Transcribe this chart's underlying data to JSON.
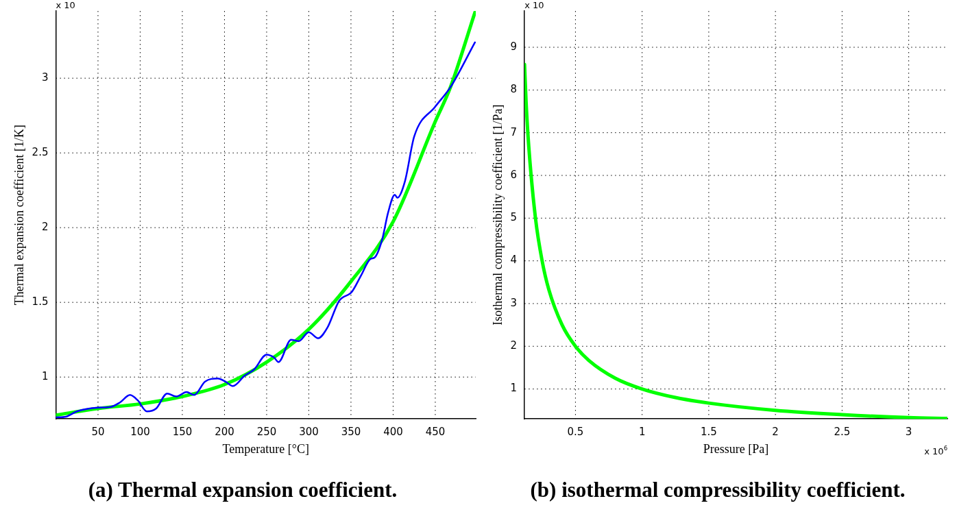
{
  "chart_data": [
    {
      "type": "line",
      "title": "(a) Thermal expansion coefficient.",
      "xlabel": "Temperature [°C]",
      "ylabel": "Thermal expansion coefficient [1/K]",
      "annotations": [
        "x 10"
      ],
      "xlim": [
        0,
        498
      ],
      "xticks": [
        50,
        100,
        150,
        200,
        250,
        300,
        350,
        400,
        450
      ],
      "ylim": [
        0.72,
        3.45
      ],
      "yticks": [
        1,
        1.5,
        2,
        2.5,
        3
      ],
      "grid": true,
      "legend": false,
      "marker": "none",
      "line_style": "solid",
      "series": [
        {
          "color": "#0000ff",
          "x": [
            0,
            12,
            25,
            50,
            65,
            76,
            88,
            97,
            108,
            119,
            132,
            143,
            155,
            164,
            177,
            192,
            201,
            210,
            224,
            235,
            250,
            259,
            264,
            279,
            288,
            300,
            311,
            322,
            336,
            351,
            362,
            373,
            378,
            387,
            394,
            402,
            405,
            414,
            425,
            450,
            468,
            497
          ],
          "values": [
            0.73,
            0.735,
            0.77,
            0.795,
            0.8,
            0.83,
            0.88,
            0.845,
            0.77,
            0.79,
            0.89,
            0.87,
            0.9,
            0.88,
            0.97,
            0.99,
            0.97,
            0.94,
            1.01,
            1.05,
            1.15,
            1.13,
            1.1,
            1.25,
            1.24,
            1.3,
            1.26,
            1.33,
            1.51,
            1.57,
            1.68,
            1.79,
            1.8,
            1.92,
            2.1,
            2.22,
            2.2,
            2.31,
            2.61,
            2.81,
            2.94,
            3.24
          ]
        },
        {
          "color": "#00ff00",
          "x": [
            0,
            50,
            100,
            150,
            200,
            250,
            300,
            350,
            400,
            450,
            468,
            497
          ],
          "values": [
            0.745,
            0.79,
            0.82,
            0.87,
            0.95,
            1.1,
            1.32,
            1.64,
            2.04,
            2.71,
            2.94,
            3.44
          ]
        }
      ]
    },
    {
      "type": "line",
      "title": "(b) isothermal compressibility coefficient.",
      "xlabel": "Pressure [Pa]",
      "ylabel": "Isothermal compressibility coefficient [1/Pa]",
      "annotations": [
        "x 10",
        "x 10$^{6}$"
      ],
      "xlim": [
        0.118,
        3.29
      ],
      "xticks": [
        0.5,
        1,
        1.5,
        2,
        2.5,
        3
      ],
      "ylim": [
        0.3,
        9.85
      ],
      "yticks": [
        1,
        2,
        3,
        4,
        5,
        6,
        7,
        8,
        9
      ],
      "grid": true,
      "legend": false,
      "marker": "none",
      "line_style": "solid",
      "series": [
        {
          "color": "#00ff00",
          "x": [
            0.118,
            0.13,
            0.15,
            0.2,
            0.25,
            0.3,
            0.4,
            0.5,
            0.6,
            0.8,
            1,
            1.25,
            1.5,
            2,
            2.5,
            3,
            3.29
          ],
          "values": [
            8.6,
            7.7,
            6.67,
            5,
            4,
            3.33,
            2.5,
            2,
            1.67,
            1.25,
            1,
            0.8,
            0.67,
            0.5,
            0.4,
            0.33,
            0.31
          ]
        }
      ]
    }
  ]
}
